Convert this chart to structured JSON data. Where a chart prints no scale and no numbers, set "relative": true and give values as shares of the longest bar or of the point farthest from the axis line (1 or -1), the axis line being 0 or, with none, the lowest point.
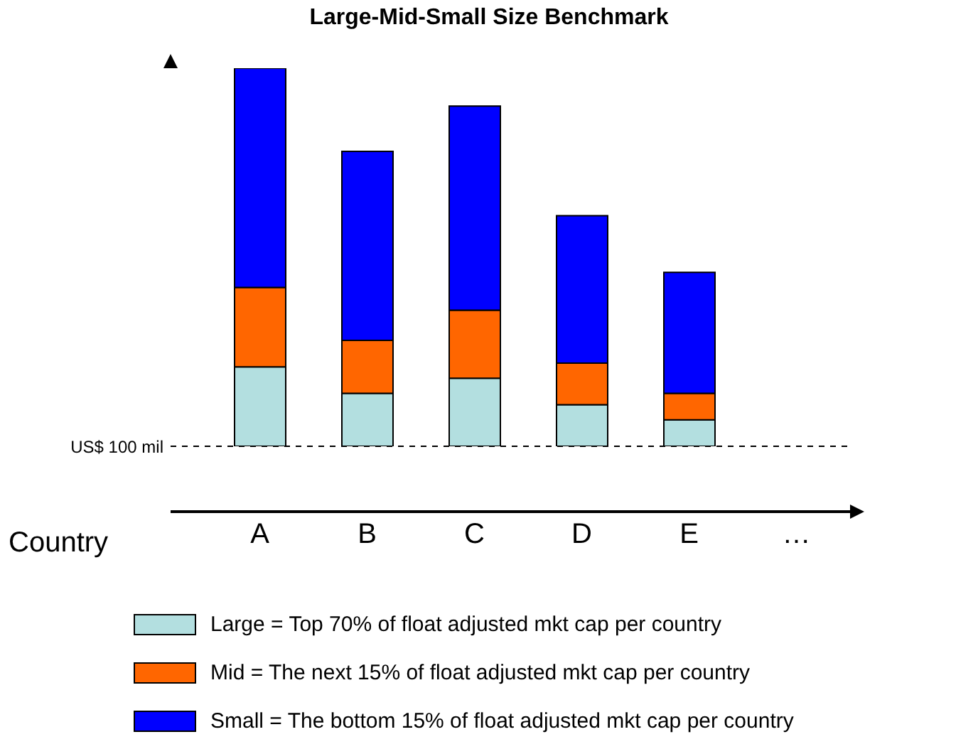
{
  "chart_data": {
    "type": "bar",
    "title": "Large-Mid-Small Size Benchmark",
    "xlabel": "Country",
    "categories": [
      "A",
      "B",
      "C",
      "D",
      "E",
      "…"
    ],
    "stacked": true,
    "relative": true,
    "series": [
      {
        "name": "Large = Top 70% of float adjusted mkt cap per country",
        "color": "#b3dfe0",
        "values": [
          0.21,
          0.14,
          0.18,
          0.11,
          0.07,
          null
        ]
      },
      {
        "name": "Mid = The next 15% of float adjusted mkt cap per country",
        "color": "#ff6600",
        "values": [
          0.21,
          0.14,
          0.18,
          0.11,
          0.07,
          null
        ]
      },
      {
        "name": "Small = The bottom 15% of float adjusted mkt cap per country",
        "color": "#0000ff",
        "values": [
          0.58,
          0.5,
          0.54,
          0.39,
          0.32,
          null
        ]
      }
    ],
    "ref_lines": [
      {
        "axis": "y",
        "value": 0,
        "label": "US$ 100 mil",
        "line_style": "dashed",
        "color": "#000000"
      }
    ],
    "legend": "bottom"
  }
}
